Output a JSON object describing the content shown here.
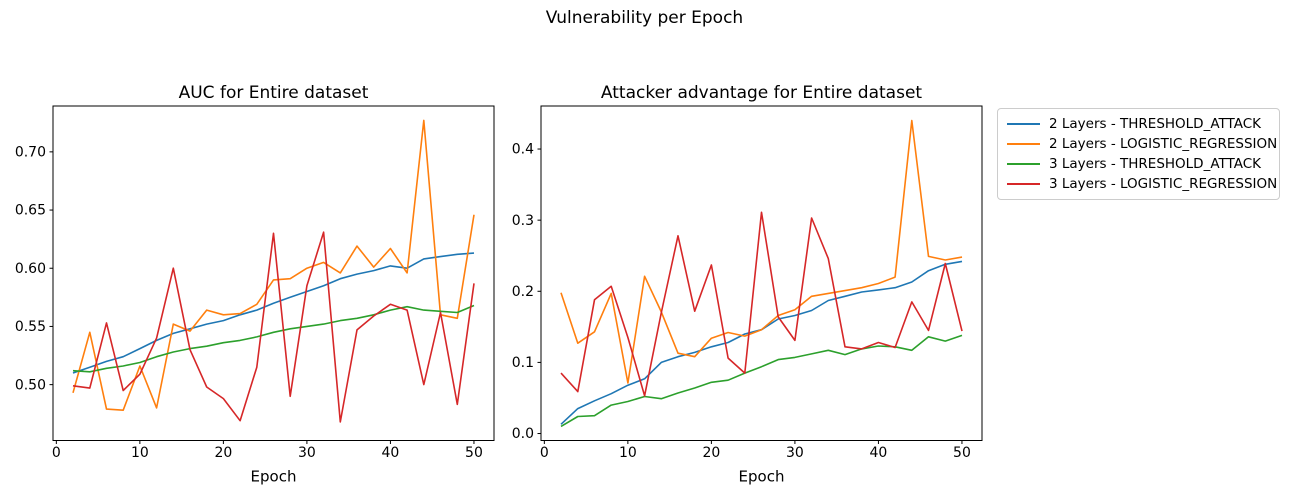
{
  "figure": {
    "suptitle": "Vulnerability per Epoch"
  },
  "palette": {
    "blue": "#1f77b4",
    "orange": "#ff7f0e",
    "green": "#2ca02c",
    "red": "#d62728",
    "spine": "#000000",
    "legend_border": "#cccccc"
  },
  "legend": {
    "entries": [
      {
        "label": "2 Layers - THRESHOLD_ATTACK",
        "color": "#1f77b4"
      },
      {
        "label": "2 Layers - LOGISTIC_REGRESSION",
        "color": "#ff7f0e"
      },
      {
        "label": "3 Layers - THRESHOLD_ATTACK",
        "color": "#2ca02c"
      },
      {
        "label": "3 Layers - LOGISTIC_REGRESSION",
        "color": "#d62728"
      }
    ]
  },
  "chart_data": [
    {
      "id": "auc",
      "type": "line",
      "title": "AUC for Entire dataset",
      "xlabel": "Epoch",
      "ylabel": "",
      "grid": false,
      "x": [
        2,
        4,
        6,
        8,
        10,
        12,
        14,
        16,
        18,
        20,
        22,
        24,
        26,
        28,
        30,
        32,
        34,
        36,
        38,
        40,
        42,
        44,
        46,
        48,
        50
      ],
      "xlim": [
        -0.4,
        52.4
      ],
      "ylim": [
        0.452,
        0.7394
      ],
      "xticks": [
        0,
        10,
        20,
        30,
        40,
        50
      ],
      "yticks": [
        0.5,
        0.55,
        0.6,
        0.65,
        0.7
      ],
      "ytick_labels": [
        "0.50",
        "0.55",
        "0.60",
        "0.65",
        "0.70"
      ],
      "series": [
        {
          "name": "2 Layers - THRESHOLD_ATTACK",
          "color": "#1f77b4",
          "values": [
            0.51,
            0.515,
            0.52,
            0.524,
            0.531,
            0.538,
            0.544,
            0.548,
            0.552,
            0.555,
            0.56,
            0.564,
            0.57,
            0.575,
            0.58,
            0.585,
            0.591,
            0.595,
            0.598,
            0.602,
            0.6,
            0.608,
            0.61,
            0.612,
            0.613
          ]
        },
        {
          "name": "2 Layers - LOGISTIC_REGRESSION",
          "color": "#ff7f0e",
          "values": [
            0.493,
            0.545,
            0.479,
            0.478,
            0.516,
            0.48,
            0.552,
            0.546,
            0.564,
            0.56,
            0.561,
            0.569,
            0.59,
            0.591,
            0.6,
            0.605,
            0.596,
            0.619,
            0.601,
            0.617,
            0.596,
            0.727,
            0.56,
            0.557,
            0.646
          ]
        },
        {
          "name": "3 Layers - THRESHOLD_ATTACK",
          "color": "#2ca02c",
          "values": [
            0.512,
            0.511,
            0.514,
            0.516,
            0.519,
            0.524,
            0.528,
            0.531,
            0.533,
            0.536,
            0.538,
            0.541,
            0.545,
            0.548,
            0.55,
            0.552,
            0.555,
            0.557,
            0.56,
            0.564,
            0.567,
            0.564,
            0.563,
            0.562,
            0.568
          ]
        },
        {
          "name": "3 Layers - LOGISTIC_REGRESSION",
          "color": "#d62728",
          "values": [
            0.499,
            0.497,
            0.553,
            0.495,
            0.509,
            0.54,
            0.6,
            0.53,
            0.498,
            0.488,
            0.469,
            0.515,
            0.63,
            0.49,
            0.585,
            0.631,
            0.468,
            0.547,
            0.559,
            0.569,
            0.564,
            0.5,
            0.562,
            0.483,
            0.587
          ]
        }
      ]
    },
    {
      "id": "attacker-advantage",
      "type": "line",
      "title": "Attacker advantage for Entire dataset",
      "xlabel": "Epoch",
      "ylabel": "",
      "grid": false,
      "x": [
        2,
        4,
        6,
        8,
        10,
        12,
        14,
        16,
        18,
        20,
        22,
        24,
        26,
        28,
        30,
        32,
        34,
        36,
        38,
        40,
        42,
        44,
        46,
        48,
        50
      ],
      "xlim": [
        -0.4,
        52.4
      ],
      "ylim": [
        -0.0098,
        0.4605
      ],
      "xticks": [
        0,
        10,
        20,
        30,
        40,
        50
      ],
      "yticks": [
        0.0,
        0.1,
        0.2,
        0.3,
        0.4
      ],
      "ytick_labels": [
        "0.0",
        "0.1",
        "0.2",
        "0.3",
        "0.4"
      ],
      "series": [
        {
          "name": "2 Layers - THRESHOLD_ATTACK",
          "color": "#1f77b4",
          "values": [
            0.013,
            0.035,
            0.046,
            0.056,
            0.068,
            0.077,
            0.1,
            0.108,
            0.114,
            0.122,
            0.128,
            0.14,
            0.146,
            0.161,
            0.166,
            0.173,
            0.187,
            0.193,
            0.199,
            0.202,
            0.205,
            0.213,
            0.229,
            0.238,
            0.242
          ]
        },
        {
          "name": "2 Layers - LOGISTIC_REGRESSION",
          "color": "#ff7f0e",
          "values": [
            0.198,
            0.127,
            0.143,
            0.197,
            0.071,
            0.221,
            0.171,
            0.113,
            0.108,
            0.134,
            0.142,
            0.137,
            0.146,
            0.166,
            0.174,
            0.193,
            0.197,
            0.201,
            0.205,
            0.211,
            0.22,
            0.44,
            0.249,
            0.244,
            0.248
          ]
        },
        {
          "name": "3 Layers - THRESHOLD_ATTACK",
          "color": "#2ca02c",
          "values": [
            0.01,
            0.024,
            0.025,
            0.04,
            0.045,
            0.052,
            0.049,
            0.057,
            0.064,
            0.072,
            0.075,
            0.085,
            0.094,
            0.104,
            0.107,
            0.112,
            0.117,
            0.111,
            0.119,
            0.123,
            0.122,
            0.117,
            0.136,
            0.13,
            0.138
          ]
        },
        {
          "name": "3 Layers - LOGISTIC_REGRESSION",
          "color": "#d62728",
          "values": [
            0.085,
            0.059,
            0.188,
            0.207,
            0.135,
            0.053,
            0.17,
            0.278,
            0.172,
            0.237,
            0.106,
            0.085,
            0.311,
            0.164,
            0.131,
            0.303,
            0.246,
            0.122,
            0.119,
            0.128,
            0.121,
            0.185,
            0.145,
            0.239,
            0.144
          ]
        }
      ]
    }
  ]
}
